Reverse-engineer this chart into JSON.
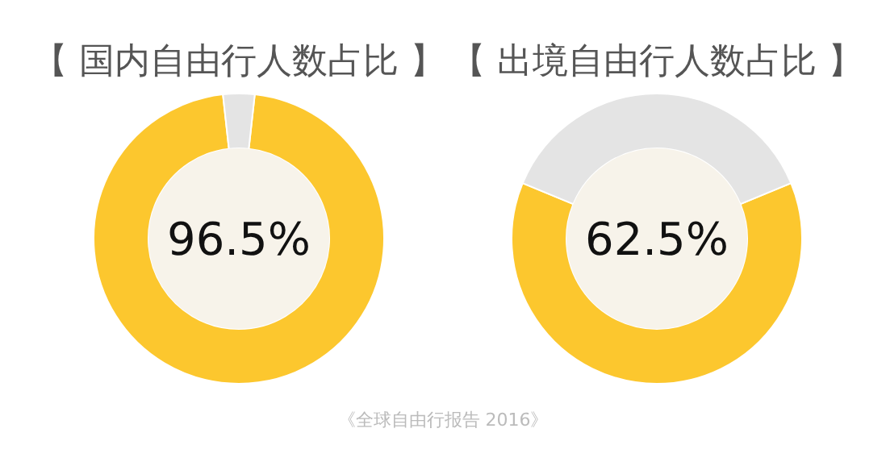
{
  "chart_data": [
    {
      "type": "donut",
      "title": "【 国内自由行人数占比 】",
      "categories": [
        null,
        null
      ],
      "values": [
        96.5,
        3.5
      ],
      "colors": [
        "#fcc72e",
        "#e4e4e4"
      ],
      "value_labels": [
        "96.5%",
        null
      ],
      "annotations": [
        "《全球自由行报告 2016》"
      ]
    },
    {
      "type": "donut",
      "title": "【 出境自由行人数占比 】",
      "categories": [
        null,
        null
      ],
      "values": [
        62.5,
        37.5
      ],
      "colors": [
        "#fcc72e",
        "#e4e4e4"
      ],
      "value_labels": [
        "62.5%",
        null
      ]
    }
  ]
}
